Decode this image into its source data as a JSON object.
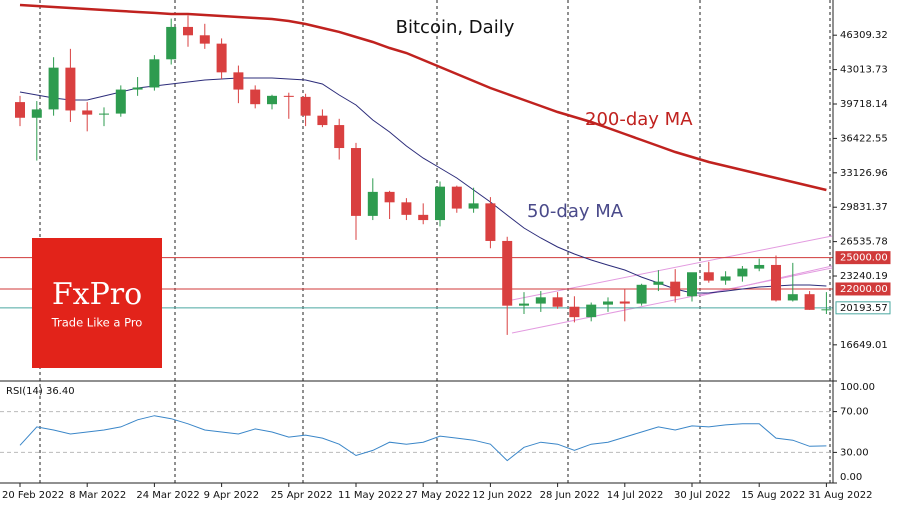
{
  "chart_data": {
    "type": "candlestick",
    "title": "Bitcoin, Daily",
    "categories": [
      "20 Feb 2022",
      null,
      null,
      null,
      "8 Mar 2022",
      null,
      null,
      null,
      "24 Mar 2022",
      null,
      null,
      null,
      "9 Apr 2022",
      null,
      null,
      null,
      "25 Apr 2022",
      null,
      null,
      null,
      "11 May 2022",
      null,
      null,
      null,
      "27 May 2022",
      null,
      null,
      null,
      "12 Jun 2022",
      null,
      null,
      null,
      "28 Jun 2022",
      null,
      null,
      null,
      "14 Jul 2022",
      null,
      null,
      null,
      "30 Jul 2022",
      null,
      null,
      null,
      "15 Aug 2022",
      null,
      null,
      null,
      "31 Aug 2022"
    ],
    "open": [
      39900,
      38400,
      39200,
      43200,
      39100,
      38700,
      38800,
      41100,
      41300,
      44000,
      47100,
      46300,
      45500,
      42750,
      41100,
      39700,
      40500,
      40400,
      38600,
      37700,
      35500,
      29000,
      31300,
      30300,
      29100,
      28600,
      31800,
      29700,
      30200,
      26600,
      20400,
      20600,
      21200,
      20300,
      19300,
      20500,
      20800,
      20600,
      22400,
      22700,
      21300,
      23600,
      22800,
      23200,
      23950,
      24300,
      20900,
      21500,
      20000
    ],
    "high": [
      40500,
      40000,
      44200,
      45000,
      39900,
      39400,
      41500,
      42300,
      44400,
      47900,
      48200,
      47400,
      46000,
      43400,
      41500,
      40600,
      40800,
      40700,
      39200,
      38300,
      36000,
      32600,
      31400,
      30700,
      30200,
      32300,
      31900,
      31700,
      30800,
      27000,
      21700,
      21800,
      21700,
      21300,
      20700,
      21200,
      22000,
      22500,
      23800,
      23900,
      23400,
      24600,
      23700,
      24200,
      24900,
      25200,
      24500,
      21800,
      21700
    ],
    "low": [
      37600,
      34300,
      38600,
      38000,
      37100,
      37600,
      38500,
      40500,
      41000,
      43500,
      45200,
      45000,
      42100,
      39800,
      39300,
      39200,
      38300,
      37600,
      37500,
      34400,
      26700,
      28600,
      28700,
      28600,
      28200,
      28000,
      29300,
      29300,
      25900,
      17600,
      19600,
      19800,
      20100,
      18800,
      18900,
      19800,
      18900,
      20400,
      21800,
      20700,
      20800,
      22600,
      22400,
      22700,
      23700,
      20800,
      20800,
      20000,
      19600
    ],
    "close": [
      38400,
      39200,
      43200,
      39100,
      38700,
      38800,
      41100,
      41300,
      44000,
      47100,
      46300,
      45500,
      42750,
      41100,
      39700,
      40500,
      40400,
      38600,
      37700,
      35500,
      29000,
      31300,
      30300,
      29100,
      28600,
      31800,
      29700,
      30200,
      26600,
      20400,
      20600,
      21200,
      20300,
      19300,
      20500,
      20800,
      20600,
      22400,
      22700,
      21300,
      23600,
      22800,
      23200,
      23950,
      24300,
      20900,
      21500,
      20000,
      20050
    ],
    "up_color": "#2e9b4f",
    "down_color": "#d94040",
    "ylim": [
      13280,
      49680
    ],
    "yticks": [
      16649.01,
      23240.19,
      26535.78,
      29831.37,
      33126.96,
      36422.55,
      39718.14,
      43013.73,
      46309.32
    ],
    "series": [
      {
        "name": "200-day MA",
        "color": "#c0221f",
        "values": [
          49200,
          49110,
          49010,
          48910,
          48820,
          48720,
          48630,
          48530,
          48440,
          48340,
          48340,
          48240,
          48150,
          48050,
          47960,
          47860,
          47670,
          47380,
          47000,
          46620,
          46140,
          45660,
          45080,
          44600,
          43930,
          43260,
          42590,
          41920,
          41250,
          40680,
          40100,
          39530,
          38950,
          38470,
          37990,
          37420,
          36840,
          36270,
          35690,
          35120,
          34640,
          34160,
          33780,
          33400,
          33010,
          32630,
          32250,
          31860,
          31480
        ]
      },
      {
        "name": "50-day MA",
        "color": "#2c2c7a",
        "values": [
          40870,
          40580,
          40290,
          40100,
          40100,
          40480,
          40870,
          41250,
          41440,
          41630,
          41830,
          42020,
          42110,
          42210,
          42210,
          42210,
          42110,
          42020,
          41630,
          40580,
          39620,
          38190,
          37040,
          35690,
          34540,
          33590,
          32630,
          31480,
          30330,
          29080,
          27840,
          26880,
          26020,
          25350,
          24770,
          24290,
          23820,
          23140,
          22570,
          22000,
          21610,
          21610,
          21800,
          22000,
          22190,
          22280,
          22380,
          22380,
          22280
        ]
      }
    ],
    "levels": [
      {
        "value": 25000,
        "label": "25000.00",
        "color": "#d03a3a",
        "fill": "#d03a3a"
      },
      {
        "value": 22000,
        "label": "22000.00",
        "color": "#d03a3a",
        "fill": "#d03a3a"
      },
      {
        "value": 20193.57,
        "label": "20193.57",
        "color": "#4aa8a0",
        "fill": "#ffffff"
      }
    ],
    "rsi": {
      "label": "RSI(14) 36.40",
      "color": "#3a86c8",
      "values": [
        37,
        55,
        52,
        48,
        50,
        52,
        55,
        62,
        66,
        63,
        58,
        52,
        50,
        48,
        53,
        50,
        45,
        47,
        44,
        38,
        27,
        32,
        40,
        38,
        40,
        46,
        44,
        42,
        38,
        22,
        35,
        40,
        38,
        32,
        38,
        40,
        45,
        50,
        55,
        52,
        56,
        55,
        57,
        58,
        58,
        44,
        42,
        36,
        36.4
      ],
      "ylim": [
        0,
        100
      ],
      "yticks": [
        {
          "value": 0,
          "label": "0.00"
        },
        {
          "value": 30,
          "label": "30.00"
        },
        {
          "value": 70,
          "label": "70.00"
        },
        {
          "value": 100,
          "label": "100.00"
        }
      ],
      "levels": [
        30,
        70
      ]
    },
    "logo": {
      "name": "FxPro",
      "tagline": "Trade Like a Pro"
    }
  }
}
